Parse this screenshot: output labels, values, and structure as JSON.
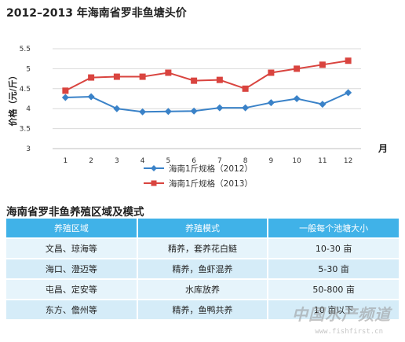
{
  "chart_data": {
    "type": "line",
    "title": "2012–2013 年海南省罗非鱼塘头价",
    "ylabel": "价格（元/斤）",
    "xlabel": "月",
    "x": [
      1,
      2,
      3,
      4,
      5,
      6,
      7,
      8,
      9,
      10,
      11,
      12
    ],
    "y_ticks": [
      "3",
      "3.5",
      "4",
      "4.5",
      "5",
      "5.5"
    ],
    "ylim": [
      3,
      5.5
    ],
    "grid": "horizontal",
    "legend_position": "bottom-center",
    "series": [
      {
        "name": "海南1斤规格（2012）",
        "color": "#3a82c8",
        "marker": "diamond",
        "values": [
          4.28,
          4.3,
          4.0,
          3.92,
          3.93,
          3.94,
          4.02,
          4.02,
          4.15,
          4.25,
          4.11,
          4.4
        ]
      },
      {
        "name": "海南1斤规格（2013）",
        "color": "#d9443f",
        "marker": "square",
        "values": [
          4.45,
          4.78,
          4.8,
          4.8,
          4.9,
          4.7,
          4.72,
          4.5,
          4.9,
          5.0,
          5.1,
          5.2
        ]
      }
    ]
  },
  "table": {
    "title": "海南省罗非鱼养殖区域及模式",
    "headers": [
      "养殖区域",
      "养殖模式",
      "一般每个池塘大小"
    ],
    "rows": [
      [
        "文昌、琼海等",
        "精养，套养花白鲢",
        "10-30 亩"
      ],
      [
        "海口、澄迈等",
        "精养，鱼虾混养",
        "5-30 亩"
      ],
      [
        "屯昌、定安等",
        "水库放养",
        "50-800 亩"
      ],
      [
        "东方、儋州等",
        "精养，鱼鸭共养",
        "10 亩以下"
      ]
    ]
  },
  "watermark": {
    "text": "中国水产频道",
    "url": "www.fishfirst.cn"
  }
}
